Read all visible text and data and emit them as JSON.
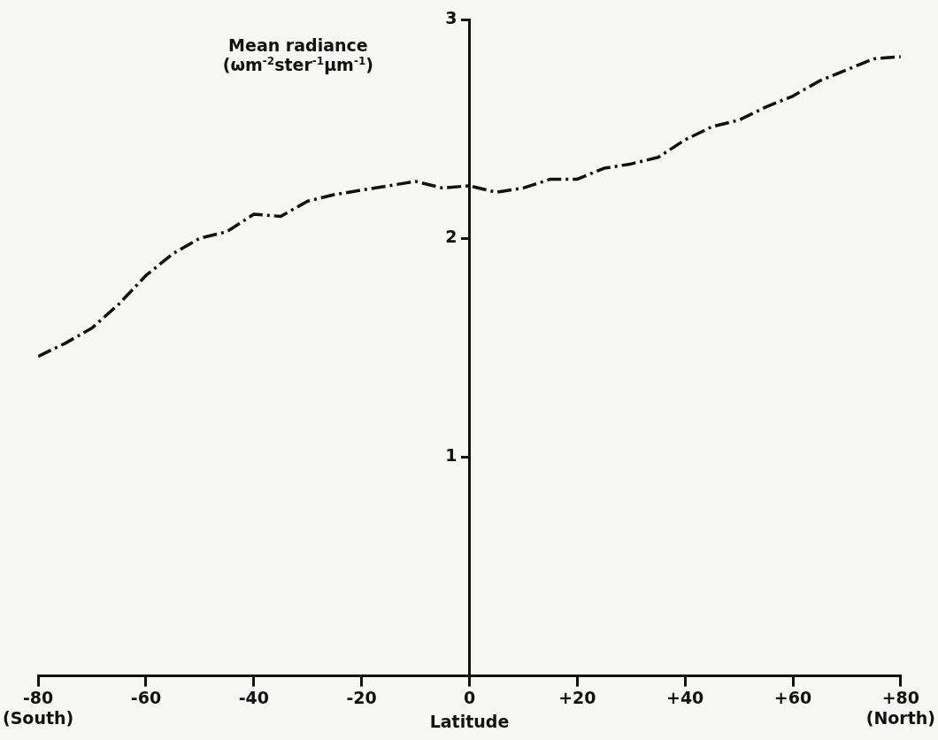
{
  "chart_data": {
    "type": "line",
    "ylabel": "Mean radiance (ωm$^{-2}$ster$^{-1}$μm$^{-1}$)",
    "xlabel": "Latitude",
    "x": [
      -80,
      -75,
      -70,
      -65,
      -60,
      -55,
      -50,
      -45,
      -40,
      -35,
      -30,
      -25,
      -20,
      -15,
      -10,
      -5,
      0,
      5,
      10,
      15,
      20,
      25,
      30,
      35,
      40,
      45,
      50,
      55,
      60,
      65,
      70,
      75,
      80
    ],
    "series": [
      {
        "color": "#111111",
        "values": [
          1.46,
          1.52,
          1.59,
          1.7,
          1.83,
          1.93,
          2.0,
          2.03,
          2.11,
          2.1,
          2.17,
          2.2,
          2.22,
          2.24,
          2.26,
          2.23,
          2.24,
          2.21,
          2.23,
          2.27,
          2.27,
          2.32,
          2.34,
          2.37,
          2.45,
          2.51,
          2.54,
          2.6,
          2.65,
          2.72,
          2.77,
          2.82,
          2.83
        ]
      }
    ],
    "xlim": [
      -80,
      80
    ],
    "xticks": [
      {
        "value": -80,
        "label": "-80\n(South)"
      },
      -60,
      -40,
      -20,
      0,
      {
        "value": 20,
        "label": "+20"
      },
      {
        "value": 40,
        "label": "+40"
      },
      {
        "value": 60,
        "label": "+60"
      },
      {
        "value": 80,
        "label": "+80\n(North)"
      }
    ],
    "ylim": [
      0,
      3
    ],
    "yticks": [
      1,
      2,
      3
    ],
    "grid": false,
    "legend": false,
    "marker": "none",
    "line_style": "dashed"
  }
}
